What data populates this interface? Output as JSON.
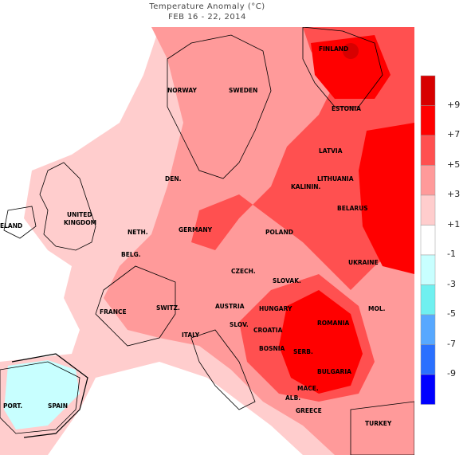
{
  "title": {
    "line1": "Temperature Anomaly (°C)",
    "line2": "FEB 16  -  22, 2014"
  },
  "countries": [
    {
      "key": "finland",
      "label": "FINLAND"
    },
    {
      "key": "norway",
      "label": "NORWAY"
    },
    {
      "key": "sweden",
      "label": "SWEDEN"
    },
    {
      "key": "estonia",
      "label": "ESTONIA"
    },
    {
      "key": "latvia",
      "label": "LATVIA"
    },
    {
      "key": "lithuania",
      "label": "LITHUANIA"
    },
    {
      "key": "kalinin",
      "label": "KALININ."
    },
    {
      "key": "belarus",
      "label": "BELARUS"
    },
    {
      "key": "denmark",
      "label": "DEN."
    },
    {
      "key": "uk",
      "label": "UNITED"
    },
    {
      "key": "uk2",
      "label": "KINGDOM"
    },
    {
      "key": "ireland",
      "label": "ELAND"
    },
    {
      "key": "germany",
      "label": "GERMANY"
    },
    {
      "key": "poland",
      "label": "POLAND"
    },
    {
      "key": "neth",
      "label": "NETH."
    },
    {
      "key": "belg",
      "label": "BELG."
    },
    {
      "key": "czech",
      "label": "CZECH."
    },
    {
      "key": "slovak",
      "label": "SLOVAK."
    },
    {
      "key": "ukraine",
      "label": "UKRAINE"
    },
    {
      "key": "france",
      "label": "FRANCE"
    },
    {
      "key": "switz",
      "label": "SWITZ."
    },
    {
      "key": "austria",
      "label": "AUSTRIA"
    },
    {
      "key": "hungary",
      "label": "HUNGARY"
    },
    {
      "key": "mol",
      "label": "MOL."
    },
    {
      "key": "italy",
      "label": "ITALY"
    },
    {
      "key": "slov",
      "label": "SLOV."
    },
    {
      "key": "croatia",
      "label": "CROATIA"
    },
    {
      "key": "romania",
      "label": "ROMANIA"
    },
    {
      "key": "bosnia",
      "label": "BOSNIA"
    },
    {
      "key": "serb",
      "label": "SERB."
    },
    {
      "key": "bulgaria",
      "label": "BULGARIA"
    },
    {
      "key": "mace",
      "label": "MACE."
    },
    {
      "key": "alb",
      "label": "ALB."
    },
    {
      "key": "greece",
      "label": "GREECE"
    },
    {
      "key": "turkey",
      "label": "TURKEY"
    },
    {
      "key": "port",
      "label": "PORT."
    },
    {
      "key": "spain",
      "label": "SPAIN"
    }
  ],
  "legend": {
    "bins": [
      {
        "color": "#d70000"
      },
      {
        "color": "#ff0000"
      },
      {
        "color": "#ff5050"
      },
      {
        "color": "#ff9a9a"
      },
      {
        "color": "#ffcdcd"
      },
      {
        "color": "#ffffff"
      },
      {
        "color": "#c8ffff"
      },
      {
        "color": "#6ff0f0"
      },
      {
        "color": "#57a8ff"
      },
      {
        "color": "#2a70ff"
      },
      {
        "color": "#0000ff"
      }
    ],
    "labels": [
      "+9",
      "+7",
      "+5",
      "+3",
      "+1",
      "-1",
      "-3",
      "-5",
      "-7",
      "-9"
    ]
  }
}
